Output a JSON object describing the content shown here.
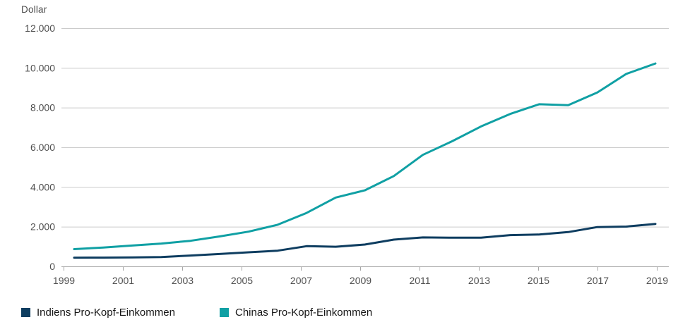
{
  "chart_data": {
    "type": "line",
    "unit_label": "Dollar",
    "x": [
      1999,
      2000,
      2001,
      2002,
      2003,
      2004,
      2005,
      2006,
      2007,
      2008,
      2009,
      2010,
      2011,
      2012,
      2013,
      2014,
      2015,
      2016,
      2017,
      2018,
      2019
    ],
    "series": [
      {
        "id": "india",
        "name": "Indiens Pro-Kopf-Einkommen",
        "color": "#0e3d60",
        "values": [
          440,
          445,
          450,
          470,
          545,
          625,
          710,
          790,
          1020,
          990,
          1100,
          1350,
          1460,
          1445,
          1450,
          1575,
          1605,
          1730,
          1980,
          2005,
          2140
        ]
      },
      {
        "id": "china",
        "name": "Chinas Pro-Kopf-Einkommen",
        "color": "#10a0a4",
        "values": [
          870,
          950,
          1050,
          1150,
          1290,
          1510,
          1750,
          2100,
          2695,
          3470,
          3830,
          4550,
          5620,
          6300,
          7050,
          7680,
          8170,
          8120,
          8760,
          9700,
          10220
        ]
      }
    ],
    "y_axis": {
      "min": 0,
      "max": 12000,
      "tick_step": 2000,
      "ticks": [
        {
          "label": "12.000",
          "value": 12000
        },
        {
          "label": "10.000",
          "value": 10000
        },
        {
          "label": "8.000",
          "value": 8000
        },
        {
          "label": "6.000",
          "value": 6000
        },
        {
          "label": "4.000",
          "value": 4000
        },
        {
          "label": "2.000",
          "value": 2000
        },
        {
          "label": "0",
          "value": 0
        }
      ]
    },
    "x_axis": {
      "ticks": [
        {
          "label": "1999",
          "year": 1999
        },
        {
          "label": "2001",
          "year": 2001
        },
        {
          "label": "2003",
          "year": 2003
        },
        {
          "label": "2005",
          "year": 2005
        },
        {
          "label": "2007",
          "year": 2007
        },
        {
          "label": "2009",
          "year": 2009
        },
        {
          "label": "2011",
          "year": 2011
        },
        {
          "label": "2013",
          "year": 2013
        },
        {
          "label": "2015",
          "year": 2015
        },
        {
          "label": "2017",
          "year": 2017
        },
        {
          "label": "2019",
          "year": 2019
        }
      ]
    },
    "grid": "horizontal",
    "legend_position": "bottom",
    "ylim": [
      0,
      12000
    ]
  }
}
